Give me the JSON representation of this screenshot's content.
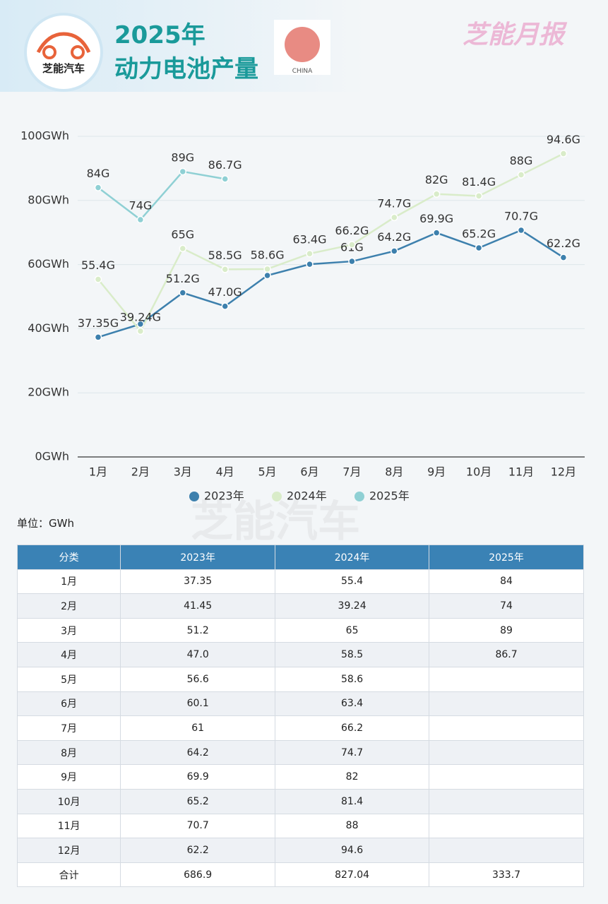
{
  "header": {
    "logo": "芝能汽车",
    "title_line1": "2025年",
    "title_line2": "动力电池产量",
    "flag_label": "CHINA",
    "brand": "芝能月报"
  },
  "watermark": "芝能汽车",
  "chart_data": {
    "type": "line",
    "categories": [
      "1月",
      "2月",
      "3月",
      "4月",
      "5月",
      "6月",
      "7月",
      "8月",
      "9月",
      "10月",
      "11月",
      "12月"
    ],
    "series": [
      {
        "name": "2023年",
        "color": "#3d80ad",
        "values": [
          37.35,
          41.45,
          51.2,
          47.0,
          56.6,
          60.1,
          61,
          64.2,
          69.9,
          65.2,
          70.7,
          62.2
        ],
        "value_labels": [
          "37.35G",
          null,
          "51.2G",
          "47.0G",
          null,
          null,
          "61G",
          "64.2G",
          "69.9G",
          "65.2G",
          "70.7G",
          "62.2G"
        ]
      },
      {
        "name": "2024年",
        "color": "#d9ecc9",
        "values": [
          55.4,
          39.24,
          65,
          58.5,
          58.6,
          63.4,
          66.2,
          74.7,
          82,
          81.4,
          88,
          94.6
        ],
        "value_labels": [
          "55.4G",
          "39.24G",
          "65G",
          "58.5G",
          "58.6G",
          "63.4G",
          "66.2G",
          "74.7G",
          "82G",
          "81.4G",
          "88G",
          "94.6G"
        ]
      },
      {
        "name": "2025年",
        "color": "#8fd0d4",
        "values": [
          84,
          74,
          89,
          86.7,
          null,
          null,
          null,
          null,
          null,
          null,
          null,
          null
        ],
        "value_labels": [
          "84G",
          "74G",
          "89G",
          "86.7G",
          null,
          null,
          null,
          null,
          null,
          null,
          null,
          null
        ]
      }
    ],
    "ylim": [
      0,
      100
    ],
    "yticks": [
      {
        "value": 0,
        "label": "0GWh"
      },
      {
        "value": 20,
        "label": "20GWh"
      },
      {
        "value": 40,
        "label": "40GWh"
      },
      {
        "value": 60,
        "label": "60GWh"
      },
      {
        "value": 80,
        "label": "80GWh"
      },
      {
        "value": 100,
        "label": "100GWh"
      }
    ],
    "grid": true,
    "legend": "bottom"
  },
  "unit": "单位：GWh",
  "table": {
    "header": [
      "分类",
      "2023年",
      "2024年",
      "2025年"
    ],
    "rows": [
      [
        "1月",
        "37.35",
        "55.4",
        "84"
      ],
      [
        "2月",
        "41.45",
        "39.24",
        "74"
      ],
      [
        "3月",
        "51.2",
        "65",
        "89"
      ],
      [
        "4月",
        "47.0",
        "58.5",
        "86.7"
      ],
      [
        "5月",
        "56.6",
        "58.6",
        null
      ],
      [
        "6月",
        "60.1",
        "63.4",
        null
      ],
      [
        "7月",
        "61",
        "66.2",
        null
      ],
      [
        "8月",
        "64.2",
        "74.7",
        null
      ],
      [
        "9月",
        "69.9",
        "82",
        null
      ],
      [
        "10月",
        "65.2",
        "81.4",
        null
      ],
      [
        "11月",
        "70.7",
        "88",
        null
      ],
      [
        "12月",
        "62.2",
        "94.6",
        null
      ],
      [
        "合计",
        "686.9",
        "827.04",
        "333.7"
      ]
    ]
  }
}
